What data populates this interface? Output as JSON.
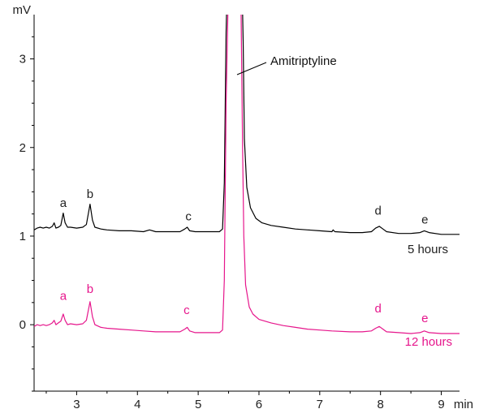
{
  "chart_data": {
    "type": "line",
    "xlabel": "min",
    "ylabel": "mV",
    "xlim": [
      2.3,
      9.3
    ],
    "ylim": [
      -0.75,
      3.5
    ],
    "x_ticks": [
      3,
      4,
      5,
      6,
      7,
      8,
      9
    ],
    "y_ticks": [
      0,
      1,
      2,
      3
    ],
    "y_minor_ticks": [
      -0.75,
      -0.5,
      -0.25,
      0.25,
      0.5,
      0.75,
      1.25,
      1.5,
      1.75,
      2.25,
      2.5,
      2.75,
      3.25
    ],
    "x_minor_ticks": [
      2.5,
      3.5,
      4.5,
      5.5,
      6.5,
      7.5,
      8.5
    ],
    "grid": false,
    "annotations": [
      {
        "text": "Amitriptyline",
        "target_x": 5.55,
        "target_y": 2.85
      }
    ],
    "series": [
      {
        "name": "5 hours",
        "color": "#000000",
        "points": [
          [
            2.3,
            1.07
          ],
          [
            2.35,
            1.09
          ],
          [
            2.4,
            1.1
          ],
          [
            2.45,
            1.09
          ],
          [
            2.5,
            1.1
          ],
          [
            2.55,
            1.09
          ],
          [
            2.6,
            1.11
          ],
          [
            2.63,
            1.15
          ],
          [
            2.66,
            1.09
          ],
          [
            2.7,
            1.1
          ],
          [
            2.74,
            1.12
          ],
          [
            2.78,
            1.26
          ],
          [
            2.81,
            1.15
          ],
          [
            2.85,
            1.1
          ],
          [
            2.9,
            1.1
          ],
          [
            3.0,
            1.09
          ],
          [
            3.1,
            1.1
          ],
          [
            3.16,
            1.13
          ],
          [
            3.22,
            1.36
          ],
          [
            3.26,
            1.18
          ],
          [
            3.3,
            1.1
          ],
          [
            3.4,
            1.08
          ],
          [
            3.5,
            1.07
          ],
          [
            3.7,
            1.06
          ],
          [
            3.9,
            1.06
          ],
          [
            4.1,
            1.05
          ],
          [
            4.2,
            1.07
          ],
          [
            4.3,
            1.05
          ],
          [
            4.5,
            1.05
          ],
          [
            4.7,
            1.05
          ],
          [
            4.78,
            1.08
          ],
          [
            4.82,
            1.1
          ],
          [
            4.86,
            1.06
          ],
          [
            4.95,
            1.05
          ],
          [
            5.1,
            1.05
          ],
          [
            5.25,
            1.05
          ],
          [
            5.35,
            1.05
          ],
          [
            5.4,
            1.08
          ],
          [
            5.43,
            1.6
          ],
          [
            5.46,
            3.3
          ],
          [
            5.48,
            3.9
          ],
          [
            5.58,
            3.9
          ],
          [
            5.72,
            3.9
          ],
          [
            5.74,
            3.2
          ],
          [
            5.76,
            2.1
          ],
          [
            5.8,
            1.55
          ],
          [
            5.86,
            1.32
          ],
          [
            5.95,
            1.2
          ],
          [
            6.05,
            1.15
          ],
          [
            6.2,
            1.12
          ],
          [
            6.4,
            1.1
          ],
          [
            6.6,
            1.08
          ],
          [
            6.8,
            1.07
          ],
          [
            7.0,
            1.06
          ],
          [
            7.2,
            1.05
          ],
          [
            7.22,
            1.07
          ],
          [
            7.25,
            1.05
          ],
          [
            7.5,
            1.04
          ],
          [
            7.7,
            1.04
          ],
          [
            7.85,
            1.05
          ],
          [
            7.92,
            1.09
          ],
          [
            7.98,
            1.11
          ],
          [
            8.04,
            1.08
          ],
          [
            8.1,
            1.05
          ],
          [
            8.3,
            1.03
          ],
          [
            8.5,
            1.03
          ],
          [
            8.65,
            1.04
          ],
          [
            8.72,
            1.06
          ],
          [
            8.8,
            1.04
          ],
          [
            9.0,
            1.02
          ],
          [
            9.2,
            1.02
          ],
          [
            9.3,
            1.02
          ]
        ],
        "peak_labels": [
          {
            "text": "a",
            "x": 2.78,
            "y": 1.33
          },
          {
            "text": "b",
            "x": 3.22,
            "y": 1.43
          },
          {
            "text": "c",
            "x": 4.84,
            "y": 1.18
          },
          {
            "text": "d",
            "x": 7.96,
            "y": 1.24
          },
          {
            "text": "e",
            "x": 8.73,
            "y": 1.14
          }
        ]
      },
      {
        "name": "12 hours",
        "color": "#e6168c",
        "points": [
          [
            2.3,
            -0.02
          ],
          [
            2.35,
            0.0
          ],
          [
            2.4,
            -0.01
          ],
          [
            2.45,
            0.0
          ],
          [
            2.5,
            -0.01
          ],
          [
            2.55,
            0.0
          ],
          [
            2.6,
            0.02
          ],
          [
            2.63,
            0.05
          ],
          [
            2.66,
            0.0
          ],
          [
            2.7,
            0.02
          ],
          [
            2.74,
            0.04
          ],
          [
            2.78,
            0.12
          ],
          [
            2.81,
            0.05
          ],
          [
            2.85,
            0.0
          ],
          [
            2.9,
            0.01
          ],
          [
            3.0,
            0.0
          ],
          [
            3.1,
            0.01
          ],
          [
            3.16,
            0.05
          ],
          [
            3.22,
            0.26
          ],
          [
            3.26,
            0.09
          ],
          [
            3.3,
            0.0
          ],
          [
            3.4,
            -0.03
          ],
          [
            3.5,
            -0.04
          ],
          [
            3.7,
            -0.05
          ],
          [
            3.9,
            -0.06
          ],
          [
            4.1,
            -0.07
          ],
          [
            4.3,
            -0.08
          ],
          [
            4.5,
            -0.08
          ],
          [
            4.7,
            -0.08
          ],
          [
            4.78,
            -0.05
          ],
          [
            4.82,
            -0.03
          ],
          [
            4.86,
            -0.07
          ],
          [
            4.95,
            -0.09
          ],
          [
            5.1,
            -0.09
          ],
          [
            5.25,
            -0.09
          ],
          [
            5.35,
            -0.09
          ],
          [
            5.4,
            -0.06
          ],
          [
            5.43,
            0.5
          ],
          [
            5.46,
            2.5
          ],
          [
            5.5,
            3.9
          ],
          [
            5.58,
            3.9
          ],
          [
            5.7,
            3.9
          ],
          [
            5.73,
            2.0
          ],
          [
            5.75,
            1.0
          ],
          [
            5.78,
            0.45
          ],
          [
            5.84,
            0.2
          ],
          [
            5.9,
            0.12
          ],
          [
            6.0,
            0.06
          ],
          [
            6.2,
            0.02
          ],
          [
            6.4,
            -0.01
          ],
          [
            6.6,
            -0.03
          ],
          [
            6.8,
            -0.05
          ],
          [
            7.0,
            -0.06
          ],
          [
            7.2,
            -0.07
          ],
          [
            7.5,
            -0.08
          ],
          [
            7.7,
            -0.08
          ],
          [
            7.85,
            -0.07
          ],
          [
            7.92,
            -0.04
          ],
          [
            7.98,
            -0.02
          ],
          [
            8.04,
            -0.05
          ],
          [
            8.1,
            -0.08
          ],
          [
            8.3,
            -0.09
          ],
          [
            8.5,
            -0.1
          ],
          [
            8.65,
            -0.09
          ],
          [
            8.72,
            -0.07
          ],
          [
            8.8,
            -0.09
          ],
          [
            9.0,
            -0.1
          ],
          [
            9.2,
            -0.1
          ],
          [
            9.3,
            -0.1
          ]
        ],
        "peak_labels": [
          {
            "text": "a",
            "x": 2.78,
            "y": 0.28
          },
          {
            "text": "b",
            "x": 3.22,
            "y": 0.36
          },
          {
            "text": "c",
            "x": 4.81,
            "y": 0.12
          },
          {
            "text": "d",
            "x": 7.96,
            "y": 0.14
          },
          {
            "text": "e",
            "x": 8.73,
            "y": 0.03
          }
        ],
        "label_pos": {
          "x": 8.75,
          "y": -0.25
        }
      }
    ]
  }
}
